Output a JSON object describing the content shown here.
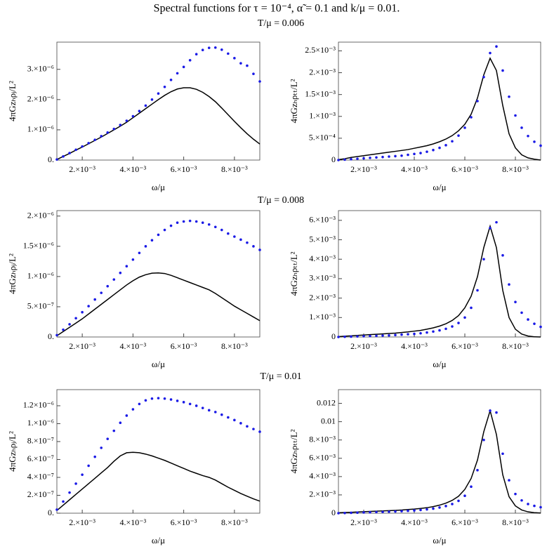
{
  "title": "Spectral functions for τ = 10⁻⁴,  α̃ = 0.1 and k/μ = 0.01.",
  "row_titles": [
    "T/μ = 0.006",
    "T/μ = 0.008",
    "T/μ = 0.01"
  ],
  "chart_data": [
    {
      "type": "line",
      "xlabel": "ω/μ",
      "ylabel": "4πGzₕρⱼ/L²",
      "x": [
        0.001,
        0.00125,
        0.0015,
        0.00175,
        0.002,
        0.00225,
        0.0025,
        0.00275,
        0.003,
        0.00325,
        0.0035,
        0.00375,
        0.004,
        0.00425,
        0.0045,
        0.00475,
        0.005,
        0.00525,
        0.0055,
        0.00575,
        0.006,
        0.00625,
        0.0065,
        0.00675,
        0.007,
        0.00725,
        0.0075,
        0.00775,
        0.008,
        0.00825,
        0.0085,
        0.00875,
        0.009
      ],
      "xlim": [
        0.001,
        0.009
      ],
      "xticks": [
        {
          "value": 0.002,
          "label": "2.×10⁻³"
        },
        {
          "value": 0.004,
          "label": "4.×10⁻³"
        },
        {
          "value": 0.006,
          "label": "6.×10⁻³"
        },
        {
          "value": 0.008,
          "label": "8.×10⁻³"
        }
      ],
      "ylim": [
        0,
        3.9e-06
      ],
      "yticks": [
        {
          "value": 0,
          "label": "0."
        },
        {
          "value": 1e-06,
          "label": "1.×10⁻⁶"
        },
        {
          "value": 2e-06,
          "label": "2.×10⁻⁶"
        },
        {
          "value": 3e-06,
          "label": "3.×10⁻⁶"
        }
      ],
      "series": [
        {
          "color": "#000000",
          "mode": "line",
          "values": [
            2e-08,
            1.2e-07,
            2.2e-07,
            3.3e-07,
            4.3e-07,
            5.4e-07,
            6.5e-07,
            7.6e-07,
            8.8e-07,
            1e-06,
            1.12e-06,
            1.25e-06,
            1.4e-06,
            1.55e-06,
            1.7e-06,
            1.85e-06,
            2e-06,
            2.14e-06,
            2.26e-06,
            2.35e-06,
            2.39e-06,
            2.39e-06,
            2.34e-06,
            2.24e-06,
            2.1e-06,
            1.93e-06,
            1.72e-06,
            1.5e-06,
            1.28e-06,
            1.07e-06,
            8.7e-07,
            6.9e-07,
            5.3e-07
          ]
        },
        {
          "color": "#1a1ae6",
          "mode": "markers",
          "values": [
            2e-08,
            1.2e-07,
            2.3e-07,
            3.4e-07,
            4.5e-07,
            5.6e-07,
            6.7e-07,
            7.9e-07,
            9.1e-07,
            1.03e-06,
            1.16e-06,
            1.3e-06,
            1.45e-06,
            1.62e-06,
            1.8e-06,
            2e-06,
            2.2e-06,
            2.42e-06,
            2.65e-06,
            2.87e-06,
            3.08e-06,
            3.3e-06,
            3.5e-06,
            3.64e-06,
            3.71e-06,
            3.72e-06,
            3.65e-06,
            3.52e-06,
            3.37e-06,
            3.2e-06,
            3.12e-06,
            2.85e-06,
            2.6e-06
          ]
        }
      ]
    },
    {
      "type": "line",
      "xlabel": "ω/μ",
      "ylabel": "4πGzₕρₜₜ/L²",
      "x": [
        0.001,
        0.00125,
        0.0015,
        0.00175,
        0.002,
        0.00225,
        0.0025,
        0.00275,
        0.003,
        0.00325,
        0.0035,
        0.00375,
        0.004,
        0.00425,
        0.0045,
        0.00475,
        0.005,
        0.00525,
        0.0055,
        0.00575,
        0.006,
        0.00625,
        0.0065,
        0.00675,
        0.007,
        0.00725,
        0.0075,
        0.00775,
        0.008,
        0.00825,
        0.0085,
        0.00875,
        0.009
      ],
      "xlim": [
        0.001,
        0.009
      ],
      "xticks": [
        {
          "value": 0.002,
          "label": "2.×10⁻³"
        },
        {
          "value": 0.004,
          "label": "4.×10⁻³"
        },
        {
          "value": 0.006,
          "label": "6.×10⁻³"
        },
        {
          "value": 0.008,
          "label": "8.×10⁻³"
        }
      ],
      "ylim": [
        0,
        0.0027
      ],
      "yticks": [
        {
          "value": 0,
          "label": "0"
        },
        {
          "value": 0.0005,
          "label": "5.×10⁻⁴"
        },
        {
          "value": 0.001,
          "label": "1.×10⁻³"
        },
        {
          "value": 0.0015,
          "label": "1.5×10⁻³"
        },
        {
          "value": 0.002,
          "label": "2.×10⁻³"
        },
        {
          "value": 0.0025,
          "label": "2.5×10⁻³"
        }
      ],
      "series": [
        {
          "color": "#000000",
          "mode": "line",
          "values": [
            1e-05,
            3e-05,
            6e-05,
            8e-05,
            0.0001,
            0.00012,
            0.00014,
            0.00016,
            0.00018,
            0.0002,
            0.00022,
            0.00024,
            0.00027,
            0.0003,
            0.00033,
            0.00037,
            0.00042,
            0.00048,
            0.00056,
            0.00067,
            0.00082,
            0.00105,
            0.00142,
            0.00195,
            0.00233,
            0.00205,
            0.00125,
            0.0006,
            0.00028,
            0.00012,
            5e-05,
            2e-05,
            0.0
          ]
        },
        {
          "color": "#1a1ae6",
          "mode": "markers",
          "values": [
            0.0,
            1e-05,
            2e-05,
            3e-05,
            4e-05,
            5e-05,
            6e-05,
            7e-05,
            8e-05,
            9e-05,
            0.0001,
            0.00012,
            0.00014,
            0.00016,
            0.00019,
            0.00023,
            0.00028,
            0.00034,
            0.00043,
            0.00056,
            0.00074,
            0.00098,
            0.00135,
            0.0019,
            0.00245,
            0.0026,
            0.00205,
            0.00145,
            0.00102,
            0.00074,
            0.00055,
            0.00042,
            0.00033
          ]
        }
      ]
    },
    {
      "type": "line",
      "xlabel": "ω/μ",
      "ylabel": "4πGzₕρⱼ/L²",
      "x": [
        0.001,
        0.00125,
        0.0015,
        0.00175,
        0.002,
        0.00225,
        0.0025,
        0.00275,
        0.003,
        0.00325,
        0.0035,
        0.00375,
        0.004,
        0.00425,
        0.0045,
        0.00475,
        0.005,
        0.00525,
        0.0055,
        0.00575,
        0.006,
        0.00625,
        0.0065,
        0.00675,
        0.007,
        0.00725,
        0.0075,
        0.00775,
        0.008,
        0.00825,
        0.0085,
        0.00875,
        0.009
      ],
      "xlim": [
        0.001,
        0.009
      ],
      "xticks": [
        {
          "value": 0.002,
          "label": "2.×10⁻³"
        },
        {
          "value": 0.004,
          "label": "4.×10⁻³"
        },
        {
          "value": 0.006,
          "label": "6.×10⁻³"
        },
        {
          "value": 0.008,
          "label": "8.×10⁻³"
        }
      ],
      "ylim": [
        0,
        2.09e-06
      ],
      "yticks": [
        {
          "value": 0,
          "label": "0."
        },
        {
          "value": 5e-07,
          "label": "5.×10⁻⁷"
        },
        {
          "value": 1e-06,
          "label": "1.×10⁻⁶"
        },
        {
          "value": 1.5e-06,
          "label": "1.5×10⁻⁶"
        },
        {
          "value": 2e-06,
          "label": "2.×10⁻⁶"
        }
      ],
      "series": [
        {
          "color": "#000000",
          "mode": "line",
          "values": [
            2e-08,
            9e-08,
            1.6e-07,
            2.3e-07,
            3e-07,
            3.8e-07,
            4.6e-07,
            5.4e-07,
            6.2e-07,
            7e-07,
            7.8e-07,
            8.6e-07,
            9.3e-07,
            9.9e-07,
            1.03e-06,
            1.055e-06,
            1.06e-06,
            1.05e-06,
            1.02e-06,
            9.8e-07,
            9.4e-07,
            9e-07,
            8.6e-07,
            8.2e-07,
            7.8e-07,
            7.2e-07,
            6.5e-07,
            5.8e-07,
            5.1e-07,
            4.5e-07,
            3.9e-07,
            3.3e-07,
            2.7e-07
          ]
        },
        {
          "color": "#1a1ae6",
          "mode": "markers",
          "values": [
            3e-08,
            1.2e-07,
            2.1e-07,
            3.1e-07,
            4.1e-07,
            5.1e-07,
            6.2e-07,
            7.3e-07,
            8.4e-07,
            9.5e-07,
            1.06e-06,
            1.17e-06,
            1.28e-06,
            1.39e-06,
            1.5e-06,
            1.6e-06,
            1.69e-06,
            1.77e-06,
            1.84e-06,
            1.89e-06,
            1.91e-06,
            1.92e-06,
            1.91e-06,
            1.89e-06,
            1.86e-06,
            1.82e-06,
            1.77e-06,
            1.71e-06,
            1.66e-06,
            1.61e-06,
            1.56e-06,
            1.5e-06,
            1.44e-06
          ]
        }
      ]
    },
    {
      "type": "line",
      "xlabel": "ω/μ",
      "ylabel": "4πGzₕρₜₜ/L²",
      "x": [
        0.001,
        0.00125,
        0.0015,
        0.00175,
        0.002,
        0.00225,
        0.0025,
        0.00275,
        0.003,
        0.00325,
        0.0035,
        0.00375,
        0.004,
        0.00425,
        0.0045,
        0.00475,
        0.005,
        0.00525,
        0.0055,
        0.00575,
        0.006,
        0.00625,
        0.0065,
        0.00675,
        0.007,
        0.00725,
        0.0075,
        0.00775,
        0.008,
        0.00825,
        0.0085,
        0.00875,
        0.009
      ],
      "xlim": [
        0.001,
        0.009
      ],
      "xticks": [
        {
          "value": 0.002,
          "label": "2.×10⁻³"
        },
        {
          "value": 0.004,
          "label": "4.×10⁻³"
        },
        {
          "value": 0.006,
          "label": "6.×10⁻³"
        },
        {
          "value": 0.008,
          "label": "8.×10⁻³"
        }
      ],
      "ylim": [
        0,
        0.0065
      ],
      "yticks": [
        {
          "value": 0,
          "label": "0"
        },
        {
          "value": 0.001,
          "label": "1.×10⁻³"
        },
        {
          "value": 0.002,
          "label": "2.×10⁻³"
        },
        {
          "value": 0.003,
          "label": "3.×10⁻³"
        },
        {
          "value": 0.004,
          "label": "4.×10⁻³"
        },
        {
          "value": 0.005,
          "label": "5.×10⁻³"
        },
        {
          "value": 0.006,
          "label": "6.×10⁻³"
        }
      ],
      "series": [
        {
          "color": "#000000",
          "mode": "line",
          "values": [
            2e-05,
            4e-05,
            6e-05,
            8e-05,
            0.0001,
            0.00012,
            0.00014,
            0.00016,
            0.00018,
            0.0002,
            0.00023,
            0.00026,
            0.0003,
            0.00034,
            0.0004,
            0.00047,
            0.00056,
            0.00068,
            0.00085,
            0.0011,
            0.0015,
            0.0021,
            0.0031,
            0.0046,
            0.0057,
            0.0046,
            0.0024,
            0.001,
            0.0004,
            0.00015,
            5e-05,
            1e-05,
            0.0
          ]
        },
        {
          "color": "#1a1ae6",
          "mode": "markers",
          "values": [
            0.0,
            1e-05,
            2e-05,
            3e-05,
            4e-05,
            5e-05,
            6e-05,
            7e-05,
            8e-05,
            0.0001,
            0.00012,
            0.00014,
            0.00016,
            0.00019,
            0.00023,
            0.00028,
            0.00034,
            0.00042,
            0.00054,
            0.00072,
            0.001,
            0.0015,
            0.0024,
            0.004,
            0.0056,
            0.0059,
            0.0042,
            0.0027,
            0.0018,
            0.00125,
            0.0009,
            0.00068,
            0.00052
          ]
        }
      ]
    },
    {
      "type": "line",
      "xlabel": "ω/μ",
      "ylabel": "4πGzₕρⱼ/L²",
      "x": [
        0.001,
        0.00125,
        0.0015,
        0.00175,
        0.002,
        0.00225,
        0.0025,
        0.00275,
        0.003,
        0.00325,
        0.0035,
        0.00375,
        0.004,
        0.00425,
        0.0045,
        0.00475,
        0.005,
        0.00525,
        0.0055,
        0.00575,
        0.006,
        0.00625,
        0.0065,
        0.00675,
        0.007,
        0.00725,
        0.0075,
        0.00775,
        0.008,
        0.00825,
        0.0085,
        0.00875,
        0.009
      ],
      "xlim": [
        0.001,
        0.009
      ],
      "xticks": [
        {
          "value": 0.002,
          "label": "2.×10⁻³"
        },
        {
          "value": 0.004,
          "label": "4.×10⁻³"
        },
        {
          "value": 0.006,
          "label": "6.×10⁻³"
        },
        {
          "value": 0.008,
          "label": "8.×10⁻³"
        }
      ],
      "ylim": [
        0,
        1.38e-06
      ],
      "yticks": [
        {
          "value": 0,
          "label": "0."
        },
        {
          "value": 2e-07,
          "label": "2.×10⁻⁷"
        },
        {
          "value": 4e-07,
          "label": "4.×10⁻⁷"
        },
        {
          "value": 6e-07,
          "label": "6.×10⁻⁷"
        },
        {
          "value": 8e-07,
          "label": "8.×10⁻⁷"
        },
        {
          "value": 1e-06,
          "label": "1.×10⁻⁶"
        },
        {
          "value": 1.2e-06,
          "label": "1.2×10⁻⁶"
        }
      ],
      "series": [
        {
          "color": "#000000",
          "mode": "line",
          "values": [
            3e-08,
            9e-08,
            1.5e-07,
            2.1e-07,
            2.7e-07,
            3.3e-07,
            3.9e-07,
            4.5e-07,
            5.1e-07,
            5.8e-07,
            6.4e-07,
            6.75e-07,
            6.8e-07,
            6.75e-07,
            6.6e-07,
            6.4e-07,
            6.15e-07,
            5.9e-07,
            5.6e-07,
            5.3e-07,
            5e-07,
            4.7e-07,
            4.45e-07,
            4.2e-07,
            4e-07,
            3.7e-07,
            3.3e-07,
            2.9e-07,
            2.55e-07,
            2.2e-07,
            1.9e-07,
            1.6e-07,
            1.35e-07
          ]
        },
        {
          "color": "#1a1ae6",
          "mode": "markers",
          "values": [
            4e-08,
            1.3e-07,
            2.3e-07,
            3.3e-07,
            4.3e-07,
            5.3e-07,
            6.3e-07,
            7.3e-07,
            8.3e-07,
            9.2e-07,
            1.01e-06,
            1.09e-06,
            1.16e-06,
            1.22e-06,
            1.26e-06,
            1.28e-06,
            1.285e-06,
            1.28e-06,
            1.27e-06,
            1.255e-06,
            1.24e-06,
            1.22e-06,
            1.2e-06,
            1.175e-06,
            1.15e-06,
            1.13e-06,
            1.1e-06,
            1.07e-06,
            1.04e-06,
            1.005e-06,
            9.7e-07,
            9.4e-07,
            9.1e-07
          ]
        }
      ]
    },
    {
      "type": "line",
      "xlabel": "ω/μ",
      "ylabel": "4πGzₕρₜₜ/L²",
      "x": [
        0.001,
        0.00125,
        0.0015,
        0.00175,
        0.002,
        0.00225,
        0.0025,
        0.00275,
        0.003,
        0.00325,
        0.0035,
        0.00375,
        0.004,
        0.00425,
        0.0045,
        0.00475,
        0.005,
        0.00525,
        0.0055,
        0.00575,
        0.006,
        0.00625,
        0.0065,
        0.00675,
        0.007,
        0.00725,
        0.0075,
        0.00775,
        0.008,
        0.00825,
        0.0085,
        0.00875,
        0.009
      ],
      "xlim": [
        0.001,
        0.009
      ],
      "xticks": [
        {
          "value": 0.002,
          "label": "2.×10⁻³"
        },
        {
          "value": 0.004,
          "label": "4.×10⁻³"
        },
        {
          "value": 0.006,
          "label": "6.×10⁻³"
        },
        {
          "value": 0.008,
          "label": "8.×10⁻³"
        }
      ],
      "ylim": [
        0,
        0.0135
      ],
      "yticks": [
        {
          "value": 0,
          "label": "0"
        },
        {
          "value": 0.002,
          "label": "2.×10⁻³"
        },
        {
          "value": 0.004,
          "label": "4.×10⁻³"
        },
        {
          "value": 0.006,
          "label": "6.×10⁻³"
        },
        {
          "value": 0.008,
          "label": "8.×10⁻³"
        },
        0.01,
        0.012
      ],
      "series": [
        {
          "color": "#000000",
          "mode": "line",
          "values": [
            5e-05,
            8e-05,
            0.0001,
            0.00013,
            0.00016,
            0.00019,
            0.00022,
            0.00025,
            0.00028,
            0.00031,
            0.00035,
            0.0004,
            0.00045,
            0.00052,
            0.0006,
            0.00072,
            0.00088,
            0.0011,
            0.0014,
            0.00185,
            0.0026,
            0.0038,
            0.0058,
            0.0089,
            0.0112,
            0.0086,
            0.0042,
            0.0018,
            0.0008,
            0.00035,
            0.00015,
            6e-05,
            2e-05
          ]
        },
        {
          "color": "#1a1ae6",
          "mode": "markers",
          "values": [
            0.0,
            2e-05,
            4e-05,
            6e-05,
            8e-05,
            0.0001,
            0.00012,
            0.00014,
            0.00016,
            0.00019,
            0.00022,
            0.00026,
            0.0003,
            0.00035,
            0.00042,
            0.0005,
            0.00062,
            0.00078,
            0.001,
            0.00135,
            0.0019,
            0.0029,
            0.0047,
            0.008,
            0.0112,
            0.011,
            0.0065,
            0.0036,
            0.0021,
            0.0014,
            0.001,
            0.0008,
            0.00065
          ]
        }
      ]
    }
  ]
}
